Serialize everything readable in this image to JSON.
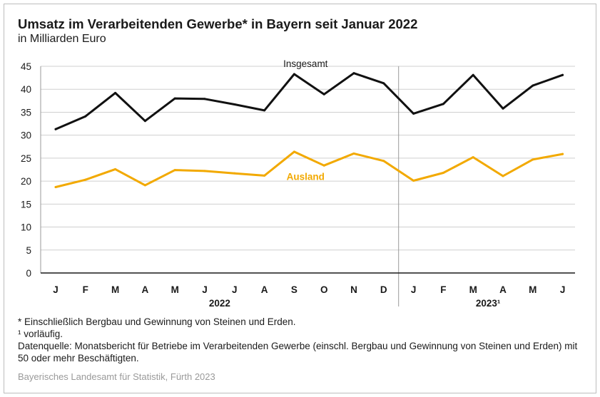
{
  "header": {
    "title": "Umsatz im Verarbeitenden Gewerbe* in Bayern seit Januar 2022",
    "subtitle": "in Milliarden Euro"
  },
  "chart_data": {
    "type": "line",
    "categories": [
      "J",
      "F",
      "M",
      "A",
      "M",
      "J",
      "J",
      "A",
      "S",
      "O",
      "N",
      "D",
      "J",
      "F",
      "M",
      "A",
      "M",
      "J"
    ],
    "year_labels": [
      {
        "label": "2022",
        "from": 0,
        "to": 11
      },
      {
        "label": "2023¹",
        "from": 12,
        "to": 17
      }
    ],
    "yticks": [
      0,
      5,
      10,
      15,
      20,
      25,
      30,
      35,
      40,
      45
    ],
    "ylim": [
      0,
      45
    ],
    "grid": true,
    "series": [
      {
        "name": "Insgesamt",
        "color": "#111111",
        "values": [
          31.3,
          34.1,
          39.2,
          33.1,
          38.0,
          37.9,
          36.7,
          35.4,
          43.3,
          38.9,
          43.5,
          41.3,
          34.7,
          36.8,
          43.1,
          35.8,
          40.8,
          43.1
        ]
      },
      {
        "name": "Ausland",
        "color": "#f2a900",
        "values": [
          18.7,
          20.3,
          22.6,
          19.1,
          22.4,
          22.2,
          21.7,
          21.2,
          26.4,
          23.4,
          26.0,
          24.4,
          20.1,
          21.8,
          25.2,
          21.1,
          24.7,
          25.9
        ]
      }
    ]
  },
  "notes": [
    "* Einschließlich Bergbau und Gewinnung von Steinen und Erden.",
    "¹ vorläufig.",
    "Datenquelle: Monatsbericht für Betriebe im Verarbeitenden Gewerbe (einschl. Bergbau und Gewinnung von Steinen und Erden) mit 50 oder mehr Beschäftigten."
  ],
  "source": "Bayerisches Landesamt für Statistik, Fürth 2023"
}
